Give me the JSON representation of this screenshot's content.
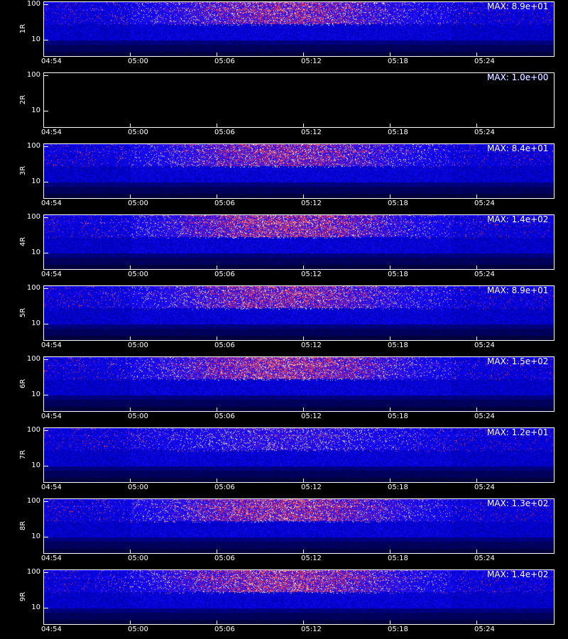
{
  "chart_data": {
    "type": "heatmap",
    "x_tick_labels": [
      "04:54",
      "05:00",
      "05:06",
      "05:12",
      "05:18",
      "05:24"
    ],
    "y_tick_labels": [
      "100",
      "10"
    ],
    "yscale": "log",
    "colormap": [
      "#000000",
      "#1010ff",
      "#ff3000",
      "#ffd000",
      "#ffffff"
    ],
    "panels": [
      {
        "label": "1R",
        "max_label": "MAX: 8.9e+01",
        "max": 89,
        "has_data": true
      },
      {
        "label": "2R",
        "max_label": "MAX: 1.0e+00",
        "max": 1,
        "has_data": false
      },
      {
        "label": "3R",
        "max_label": "MAX: 8.4e+01",
        "max": 84,
        "has_data": true
      },
      {
        "label": "4R",
        "max_label": "MAX: 1.4e+02",
        "max": 140,
        "has_data": true
      },
      {
        "label": "5R",
        "max_label": "MAX: 8.9e+01",
        "max": 89,
        "has_data": true
      },
      {
        "label": "6R",
        "max_label": "MAX: 1.5e+02",
        "max": 150,
        "has_data": true
      },
      {
        "label": "7R",
        "max_label": "MAX: 1.2e+01",
        "max": 12,
        "has_data": true
      },
      {
        "label": "8R",
        "max_label": "MAX: 1.3e+02",
        "max": 130,
        "has_data": true
      },
      {
        "label": "9R",
        "max_label": "MAX: 1.4e+02",
        "max": 140,
        "has_data": true
      }
    ]
  }
}
